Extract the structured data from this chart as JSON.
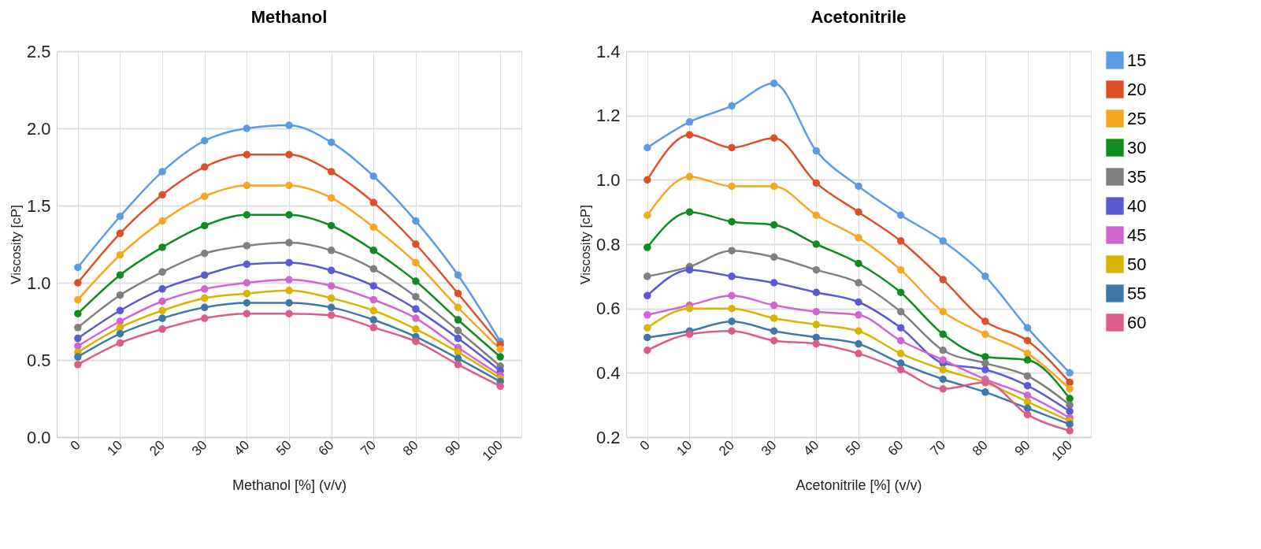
{
  "chart_data": [
    {
      "type": "line",
      "title": "Methanol",
      "xlabel": "Methanol [%] (v/v)",
      "ylabel": "Viscosity [cP]",
      "categories": [
        "0",
        "10",
        "20",
        "30",
        "40",
        "50",
        "60",
        "70",
        "80",
        "90",
        "100"
      ],
      "ylim": [
        0,
        2.5
      ],
      "yticks": [
        {
          "value": 0,
          "label": "0.0"
        },
        0.5,
        {
          "value": 1,
          "label": "1.0"
        },
        1.5,
        {
          "value": 2,
          "label": "2.0"
        },
        2.5
      ],
      "grid": true,
      "legend": "right",
      "marker": "circle",
      "line_style": "solid",
      "series": [
        {
          "name": "15",
          "color": "#5b9be6",
          "values": [
            1.1,
            1.43,
            1.72,
            1.92,
            2.0,
            2.02,
            1.91,
            1.69,
            1.4,
            1.05,
            0.62
          ]
        },
        {
          "name": "20",
          "color": "#dc5028",
          "values": [
            1.0,
            1.32,
            1.57,
            1.75,
            1.83,
            1.83,
            1.72,
            1.52,
            1.25,
            0.93,
            0.6
          ]
        },
        {
          "name": "25",
          "color": "#f5a623",
          "values": [
            0.89,
            1.18,
            1.4,
            1.56,
            1.63,
            1.63,
            1.55,
            1.36,
            1.13,
            0.84,
            0.57
          ]
        },
        {
          "name": "30",
          "color": "#0f8c1e",
          "values": [
            0.8,
            1.05,
            1.23,
            1.37,
            1.44,
            1.44,
            1.37,
            1.21,
            1.01,
            0.76,
            0.52
          ]
        },
        {
          "name": "35",
          "color": "#7f7f7f",
          "values": [
            0.71,
            0.92,
            1.07,
            1.19,
            1.24,
            1.26,
            1.21,
            1.09,
            0.91,
            0.69,
            0.46
          ]
        },
        {
          "name": "40",
          "color": "#5a5ad2",
          "values": [
            0.64,
            0.82,
            0.96,
            1.05,
            1.12,
            1.13,
            1.08,
            0.98,
            0.83,
            0.64,
            0.43
          ]
        },
        {
          "name": "45",
          "color": "#d264d2",
          "values": [
            0.59,
            0.75,
            0.88,
            0.96,
            1.0,
            1.02,
            0.98,
            0.89,
            0.77,
            0.58,
            0.4
          ]
        },
        {
          "name": "50",
          "color": "#d9b300",
          "values": [
            0.55,
            0.71,
            0.82,
            0.9,
            0.93,
            0.95,
            0.9,
            0.82,
            0.7,
            0.55,
            0.38
          ]
        },
        {
          "name": "55",
          "color": "#3c78aa",
          "values": [
            0.52,
            0.67,
            0.77,
            0.84,
            0.87,
            0.87,
            0.84,
            0.76,
            0.65,
            0.51,
            0.36
          ]
        },
        {
          "name": "60",
          "color": "#dc5a8c",
          "values": [
            0.47,
            0.61,
            0.7,
            0.77,
            0.8,
            0.8,
            0.79,
            0.71,
            0.62,
            0.47,
            0.33
          ]
        }
      ]
    },
    {
      "type": "line",
      "title": "Acetonitrile",
      "xlabel": "Acetonitrile [%] (v/v)",
      "ylabel": "Viscosity [cP]",
      "categories": [
        "0",
        "10",
        "20",
        "30",
        "40",
        "50",
        "60",
        "70",
        "80",
        "90",
        "100"
      ],
      "ylim": [
        0.2,
        1.4
      ],
      "yticks": [
        0.2,
        0.4,
        0.6,
        0.8,
        {
          "value": 1,
          "label": "1.0"
        },
        1.2,
        1.4
      ],
      "grid": true,
      "legend": "right",
      "marker": "circle",
      "line_style": "solid",
      "series": [
        {
          "name": "15",
          "color": "#5b9be6",
          "values": [
            1.1,
            1.18,
            1.23,
            1.3,
            1.09,
            0.98,
            0.89,
            0.81,
            0.7,
            0.54,
            0.4
          ]
        },
        {
          "name": "20",
          "color": "#dc5028",
          "values": [
            1.0,
            1.14,
            1.1,
            1.13,
            0.99,
            0.9,
            0.81,
            0.69,
            0.56,
            0.5,
            0.37
          ]
        },
        {
          "name": "25",
          "color": "#f5a623",
          "values": [
            0.89,
            1.01,
            0.98,
            0.98,
            0.89,
            0.82,
            0.72,
            0.59,
            0.52,
            0.46,
            0.35
          ]
        },
        {
          "name": "30",
          "color": "#0f8c1e",
          "values": [
            0.79,
            0.9,
            0.87,
            0.86,
            0.8,
            0.74,
            0.65,
            0.52,
            0.45,
            0.44,
            0.32
          ]
        },
        {
          "name": "35",
          "color": "#7f7f7f",
          "values": [
            0.7,
            0.73,
            0.78,
            0.76,
            0.72,
            0.68,
            0.59,
            0.47,
            0.43,
            0.39,
            0.3
          ]
        },
        {
          "name": "40",
          "color": "#5a5ad2",
          "values": [
            0.64,
            0.72,
            0.7,
            0.68,
            0.65,
            0.62,
            0.54,
            0.43,
            0.41,
            0.36,
            0.28
          ]
        },
        {
          "name": "45",
          "color": "#d264d2",
          "values": [
            0.58,
            0.61,
            0.64,
            0.61,
            0.59,
            0.58,
            0.5,
            0.44,
            0.38,
            0.33,
            0.26
          ]
        },
        {
          "name": "50",
          "color": "#d9b300",
          "values": [
            0.54,
            0.6,
            0.6,
            0.57,
            0.55,
            0.53,
            0.46,
            0.41,
            0.37,
            0.31,
            0.25
          ]
        },
        {
          "name": "55",
          "color": "#3c78aa",
          "values": [
            0.51,
            0.53,
            0.56,
            0.53,
            0.51,
            0.49,
            0.43,
            0.38,
            0.34,
            0.29,
            0.24
          ]
        },
        {
          "name": "60",
          "color": "#dc5a8c",
          "values": [
            0.47,
            0.52,
            0.53,
            0.5,
            0.49,
            0.46,
            0.41,
            0.35,
            0.37,
            0.27,
            0.22
          ]
        }
      ]
    }
  ]
}
